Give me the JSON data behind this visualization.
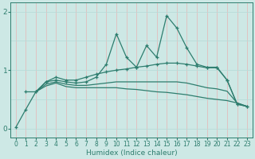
{
  "xlabel": "Humidex (Indice chaleur)",
  "bg_color": "#cde8e5",
  "line_color": "#2e7d6e",
  "white_grid_color": "#b8dbd8",
  "red_grid_color": "#e8b4b4",
  "xlim": [
    -0.5,
    23.5
  ],
  "ylim": [
    -0.15,
    2.15
  ],
  "yticks": [
    0,
    1,
    2
  ],
  "xticks": [
    0,
    1,
    2,
    3,
    4,
    5,
    6,
    7,
    8,
    9,
    10,
    11,
    12,
    13,
    14,
    15,
    16,
    17,
    18,
    19,
    20,
    21,
    22,
    23
  ],
  "line1_x": [
    0,
    1,
    2,
    3,
    4,
    5,
    6,
    7,
    8,
    9,
    10,
    11,
    12,
    13,
    14,
    15,
    16,
    17,
    18,
    19,
    20,
    21,
    22,
    23
  ],
  "line1_y": [
    0.02,
    0.33,
    0.63,
    0.8,
    0.83,
    0.8,
    0.78,
    0.8,
    0.88,
    1.1,
    1.62,
    1.22,
    1.05,
    1.42,
    1.22,
    1.93,
    1.72,
    1.38,
    1.1,
    1.05,
    1.05,
    0.83,
    0.42,
    0.38
  ],
  "line2_x": [
    1,
    2,
    3,
    4,
    5,
    6,
    7,
    8,
    9,
    10,
    11,
    12,
    13,
    14,
    15,
    16,
    17,
    18,
    19,
    20,
    21,
    22,
    23
  ],
  "line2_y": [
    0.63,
    0.63,
    0.8,
    0.88,
    0.83,
    0.83,
    0.88,
    0.93,
    0.97,
    1.0,
    1.02,
    1.05,
    1.07,
    1.1,
    1.12,
    1.12,
    1.1,
    1.07,
    1.04,
    1.04,
    0.83,
    0.42,
    0.38
  ],
  "line3_x": [
    2,
    3,
    4,
    5,
    6,
    7,
    8,
    9,
    10,
    11,
    12,
    13,
    14,
    15,
    16,
    17,
    18,
    19,
    20,
    21,
    22,
    23
  ],
  "line3_y": [
    0.63,
    0.76,
    0.8,
    0.76,
    0.74,
    0.74,
    0.76,
    0.78,
    0.8,
    0.8,
    0.8,
    0.8,
    0.8,
    0.8,
    0.8,
    0.78,
    0.74,
    0.7,
    0.68,
    0.64,
    0.44,
    0.38
  ],
  "line4_x": [
    2,
    3,
    4,
    5,
    6,
    7,
    8,
    9,
    10,
    11,
    12,
    13,
    14,
    15,
    16,
    17,
    18,
    19,
    20,
    21,
    22,
    23
  ],
  "line4_y": [
    0.63,
    0.73,
    0.78,
    0.72,
    0.7,
    0.7,
    0.7,
    0.7,
    0.7,
    0.68,
    0.67,
    0.65,
    0.63,
    0.62,
    0.6,
    0.58,
    0.55,
    0.52,
    0.5,
    0.48,
    0.44,
    0.38
  ]
}
